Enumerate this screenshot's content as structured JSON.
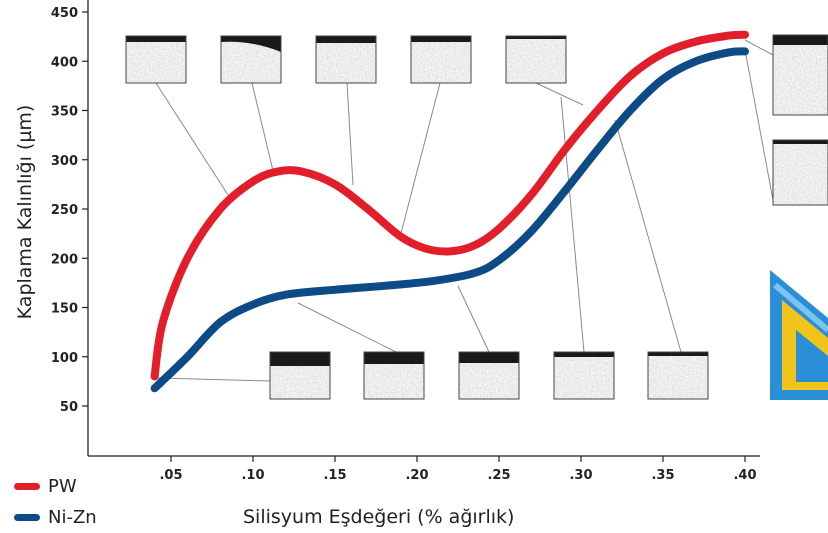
{
  "chart_data": {
    "type": "line",
    "xlabel": "Silisyum Eşdeğeri (% ağırlık)",
    "ylabel": "Kaplama Kalınlığı (µm)",
    "x_ticks": [
      ".05",
      ".10",
      ".15",
      ".20",
      ".25",
      ".30",
      ".35",
      ".40"
    ],
    "x_tick_values": [
      0.05,
      0.1,
      0.15,
      0.2,
      0.25,
      0.3,
      0.35,
      0.4
    ],
    "y_ticks": [
      50,
      100,
      150,
      200,
      250,
      300,
      350,
      400,
      450
    ],
    "xlim": [
      0.0,
      0.4
    ],
    "ylim": [
      0,
      460
    ],
    "grid": false,
    "legend_position": "bottom-left",
    "series": [
      {
        "name": "PW",
        "color": "#e31e2b",
        "points": [
          [
            0.04,
            80
          ],
          [
            0.045,
            135
          ],
          [
            0.06,
            200
          ],
          [
            0.08,
            250
          ],
          [
            0.1,
            278
          ],
          [
            0.115,
            288
          ],
          [
            0.13,
            288
          ],
          [
            0.15,
            275
          ],
          [
            0.17,
            250
          ],
          [
            0.19,
            222
          ],
          [
            0.205,
            210
          ],
          [
            0.22,
            207
          ],
          [
            0.235,
            213
          ],
          [
            0.25,
            230
          ],
          [
            0.27,
            265
          ],
          [
            0.29,
            310
          ],
          [
            0.31,
            350
          ],
          [
            0.33,
            385
          ],
          [
            0.35,
            408
          ],
          [
            0.37,
            420
          ],
          [
            0.39,
            426
          ],
          [
            0.4,
            427
          ]
        ]
      },
      {
        "name": "Ni-Zn",
        "color": "#0d4b86",
        "points": [
          [
            0.04,
            68
          ],
          [
            0.06,
            100
          ],
          [
            0.08,
            135
          ],
          [
            0.1,
            153
          ],
          [
            0.12,
            163
          ],
          [
            0.15,
            168
          ],
          [
            0.18,
            172
          ],
          [
            0.21,
            177
          ],
          [
            0.235,
            185
          ],
          [
            0.25,
            198
          ],
          [
            0.27,
            228
          ],
          [
            0.29,
            268
          ],
          [
            0.31,
            310
          ],
          [
            0.33,
            350
          ],
          [
            0.35,
            382
          ],
          [
            0.37,
            400
          ],
          [
            0.39,
            409
          ],
          [
            0.4,
            410
          ]
        ]
      }
    ],
    "micrograph_insets": {
      "top_row_count": 5,
      "bottom_row_count": 5,
      "right_column_count": 2
    }
  },
  "decor": {
    "ruler_icon": "ruler-triangle-icon"
  }
}
